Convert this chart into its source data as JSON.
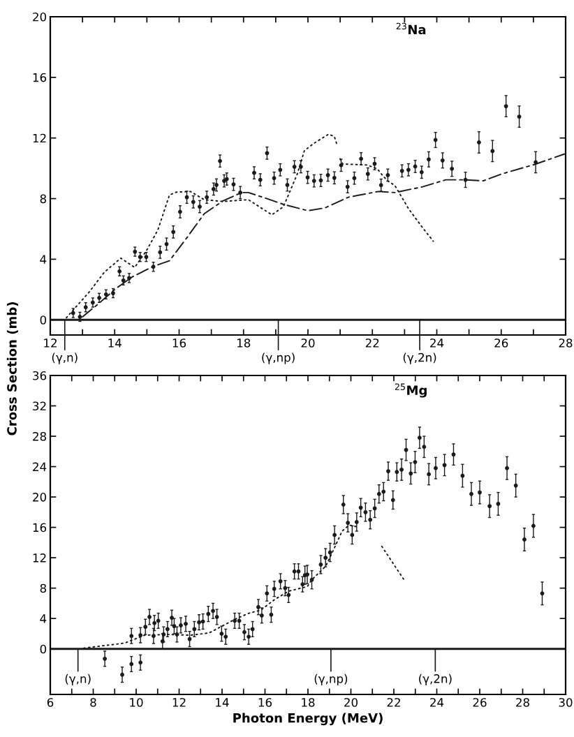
{
  "chart_data": [
    {
      "type": "scatter",
      "title": "$^{23}$Na",
      "ylabel": "Cross Section (mb)",
      "xlim": [
        12,
        28
      ],
      "ylim": [
        -1,
        20
      ],
      "xticks": [
        12,
        {
          "value": 13,
          "label": null
        },
        14,
        {
          "value": 15,
          "label": null
        },
        16,
        {
          "value": 17,
          "label": null
        },
        18,
        {
          "value": 19,
          "label": null
        },
        20,
        {
          "value": 21,
          "label": null
        },
        22,
        {
          "value": 23,
          "label": null
        },
        24,
        {
          "value": 25,
          "label": null
        },
        26,
        {
          "value": 27,
          "label": null
        },
        28
      ],
      "yticks": [
        0,
        4,
        8,
        12,
        16,
        20
      ],
      "series": [
        {
          "color": "#1a1a1a",
          "marker": "circle",
          "x": [
            12.71,
            12.92,
            13.1,
            13.32,
            13.52,
            13.73,
            13.95,
            14.15,
            14.27,
            14.45,
            14.63,
            14.79,
            14.98,
            15.2,
            15.41,
            15.61,
            15.82,
            16.03,
            16.24,
            16.44,
            16.64,
            16.86,
            17.07,
            17.16,
            17.27,
            17.4,
            17.48,
            17.69,
            17.9,
            18.33,
            18.52,
            18.73,
            18.95,
            19.14,
            19.36,
            19.58,
            19.78,
            19.99,
            20.19,
            20.4,
            20.62,
            20.82,
            21.03,
            21.23,
            21.44,
            21.65,
            21.86,
            22.07,
            22.27,
            22.48,
            22.92,
            23.12,
            23.33,
            23.53,
            23.75,
            23.96,
            24.18,
            24.47,
            24.89,
            25.31,
            25.73,
            26.15,
            26.56,
            27.07
          ],
          "values": [
            0.45,
            0.2,
            0.83,
            1.14,
            1.45,
            1.68,
            1.76,
            3.2,
            2.6,
            2.76,
            4.5,
            4.15,
            4.15,
            3.5,
            4.46,
            5.0,
            5.8,
            7.13,
            8.09,
            7.78,
            7.47,
            8.09,
            8.63,
            8.9,
            10.48,
            9.17,
            9.29,
            8.94,
            8.4,
            9.7,
            9.24,
            11.0,
            9.35,
            9.9,
            8.9,
            10.1,
            10.1,
            9.4,
            9.17,
            9.2,
            9.55,
            9.37,
            10.2,
            8.78,
            9.35,
            10.63,
            9.63,
            10.3,
            8.89,
            9.55,
            9.83,
            9.9,
            10.12,
            9.74,
            10.59,
            11.87,
            10.52,
            9.97,
            9.24,
            11.71,
            11.14,
            14.1,
            13.41,
            10.4
          ],
          "errors": [
            0.3,
            0.3,
            0.3,
            0.3,
            0.3,
            0.3,
            0.3,
            0.3,
            0.3,
            0.3,
            0.3,
            0.3,
            0.3,
            0.3,
            0.4,
            0.4,
            0.4,
            0.4,
            0.4,
            0.4,
            0.4,
            0.4,
            0.4,
            0.4,
            0.4,
            0.4,
            0.4,
            0.4,
            0.4,
            0.4,
            0.4,
            0.4,
            0.4,
            0.4,
            0.4,
            0.4,
            0.4,
            0.4,
            0.4,
            0.4,
            0.4,
            0.4,
            0.4,
            0.4,
            0.4,
            0.4,
            0.4,
            0.4,
            0.4,
            0.4,
            0.4,
            0.4,
            0.4,
            0.4,
            0.5,
            0.5,
            0.5,
            0.5,
            0.5,
            0.7,
            0.7,
            0.7,
            0.7,
            0.7
          ]
        },
        {
          "type": "line",
          "color": "#1a1a1a",
          "line_style": "dashed",
          "x": [
            13.0,
            13.46,
            14.04,
            14.55,
            15.2,
            15.7,
            16.2,
            16.78,
            17.36,
            17.94,
            18.15,
            18.73,
            19.24,
            20.0,
            20.53,
            21.25,
            22.19,
            22.7,
            23.56,
            24.28,
            24.86,
            25.44,
            26.02,
            27.03,
            27.96
          ],
          "values": [
            0.2,
            1.0,
            2.07,
            2.84,
            3.53,
            3.9,
            5.3,
            7.0,
            7.85,
            8.4,
            8.4,
            8.0,
            7.62,
            7.2,
            7.39,
            8.09,
            8.47,
            8.4,
            8.78,
            9.24,
            9.24,
            9.17,
            9.63,
            10.25,
            10.94
          ]
        },
        {
          "type": "line",
          "color": "#1a1a1a",
          "line_style": "dotted",
          "x": [
            12.5,
            13.21,
            13.68,
            14.19,
            14.62,
            14.98,
            15.34,
            15.7,
            15.92,
            16.35,
            16.78,
            17.36,
            18.15,
            18.88,
            19.24,
            19.67,
            19.89,
            20.18,
            20.64,
            20.82,
            20.9,
            20.95,
            21.0,
            21.08,
            21.83,
            22.15,
            22.34,
            22.48,
            22.7,
            23.13,
            23.56,
            23.89
          ],
          "values": [
            0.14,
            1.84,
            3.15,
            4.07,
            3.46,
            4.54,
            5.93,
            8.24,
            8.43,
            8.47,
            7.93,
            7.81,
            7.93,
            6.93,
            7.47,
            9.63,
            11.17,
            11.64,
            12.25,
            12.1,
            11.56,
            null,
            10.63,
            10.28,
            10.22,
            9.97,
            9.47,
            9.17,
            8.86,
            7.31,
            6.08,
            5.19
          ]
        }
      ],
      "ref_lines": [
        {
          "axis": "y",
          "value": 0
        }
      ],
      "annotations": [
        {
          "text": "(γ,n)",
          "x": 12.45,
          "y": 0
        },
        {
          "text": "(γ,np)",
          "x": 19.08,
          "y": 0
        },
        {
          "text": "(γ,2n)",
          "x": 23.47,
          "y": 0
        }
      ]
    },
    {
      "type": "scatter",
      "title": "$^{25}$Mg",
      "xlabel": "Photon Energy (MeV)",
      "xlim": [
        6,
        30
      ],
      "ylim": [
        -6,
        36
      ],
      "xticks": [
        6,
        {
          "value": 7,
          "label": null
        },
        8,
        {
          "value": 9,
          "label": null
        },
        10,
        {
          "value": 11,
          "label": null
        },
        12,
        {
          "value": 13,
          "label": null
        },
        14,
        {
          "value": 15,
          "label": null
        },
        16,
        {
          "value": 17,
          "label": null
        },
        18,
        {
          "value": 19,
          "label": null
        },
        20,
        {
          "value": 21,
          "label": null
        },
        22,
        {
          "value": 23,
          "label": null
        },
        24,
        {
          "value": 25,
          "label": null
        },
        26,
        {
          "value": 27,
          "label": null
        },
        28,
        {
          "value": 29,
          "label": null
        },
        30
      ],
      "yticks": [
        0,
        4,
        8,
        12,
        16,
        20,
        24,
        28,
        32,
        36
      ],
      "series": [
        {
          "color": "#1a1a1a",
          "marker": "circle",
          "x": [
            8.54,
            9.35,
            9.78,
            10.2,
            9.78,
            10.2,
            10.43,
            10.62,
            10.81,
            10.85,
            11.03,
            11.23,
            11.28,
            11.46,
            11.66,
            11.77,
            11.9,
            12.08,
            12.31,
            12.49,
            12.71,
            12.93,
            13.11,
            13.36,
            13.58,
            13.76,
            13.98,
            14.17,
            14.59,
            14.8,
            15.04,
            15.24,
            15.42,
            15.69,
            15.85,
            16.09,
            16.29,
            16.43,
            16.72,
            16.94,
            17.1,
            17.37,
            17.56,
            17.75,
            17.86,
            17.97,
            18.18,
            18.6,
            18.82,
            19.03,
            19.24,
            19.65,
            19.86,
            20.06,
            20.27,
            20.46,
            20.68,
            20.9,
            21.11,
            21.31,
            21.52,
            21.74,
            21.96,
            22.14,
            22.36,
            22.57,
            22.79,
            22.99,
            23.2,
            23.41,
            23.63,
            23.95,
            24.36,
            24.78,
            25.2,
            25.61,
            26.0,
            26.46,
            26.86,
            27.27,
            27.68,
            28.08,
            28.5,
            28.91
          ],
          "values": [
            -1.3,
            -3.4,
            -2.0,
            -1.8,
            1.7,
            1.8,
            2.9,
            4.2,
            1.7,
            3.4,
            3.7,
            1.0,
            1.9,
            2.6,
            4.1,
            3.0,
            1.9,
            3.1,
            3.3,
            1.3,
            2.6,
            3.5,
            3.6,
            4.6,
            5.0,
            4.2,
            2.0,
            1.6,
            3.7,
            3.7,
            2.2,
            1.6,
            2.6,
            5.5,
            4.4,
            7.3,
            4.5,
            7.9,
            8.9,
            8.0,
            7.1,
            10.2,
            10.2,
            8.5,
            9.7,
            9.8,
            9.1,
            11.1,
            12.0,
            12.7,
            15.0,
            19.0,
            16.6,
            15.0,
            16.7,
            18.6,
            18.0,
            17.0,
            18.5,
            20.4,
            20.7,
            23.4,
            19.6,
            23.3,
            23.6,
            26.2,
            23.1,
            24.6,
            27.8,
            26.6,
            23.0,
            23.8,
            24.2,
            25.6,
            22.8,
            20.4,
            20.6,
            18.8,
            19.1,
            23.8,
            21.5,
            14.4,
            16.2,
            7.3
          ],
          "errors": [
            1.0,
            1.0,
            1.0,
            1.0,
            1.0,
            1.0,
            1.0,
            1.0,
            1.0,
            1.0,
            1.0,
            1.0,
            1.0,
            1.0,
            1.0,
            1.0,
            1.0,
            1.0,
            1.0,
            1.0,
            1.0,
            1.0,
            1.0,
            1.0,
            1.0,
            1.0,
            1.0,
            1.0,
            1.0,
            1.0,
            1.0,
            1.0,
            1.0,
            1.0,
            1.0,
            1.0,
            1.0,
            1.0,
            1.0,
            1.0,
            1.0,
            1.0,
            1.0,
            1.0,
            1.2,
            1.2,
            1.2,
            1.2,
            1.2,
            1.2,
            1.2,
            1.2,
            1.2,
            1.2,
            1.2,
            1.2,
            1.2,
            1.2,
            1.2,
            1.2,
            1.2,
            1.2,
            1.2,
            1.2,
            1.4,
            1.4,
            1.4,
            1.4,
            1.4,
            1.4,
            1.4,
            1.4,
            1.4,
            1.4,
            1.5,
            1.5,
            1.5,
            1.5,
            1.5,
            1.5,
            1.5,
            1.5,
            1.5,
            1.5
          ]
        },
        {
          "type": "line",
          "color": "#1a1a1a",
          "line_style": "dotted",
          "x": [
            7.56,
            9.3,
            9.5,
            10.4,
            11.46,
            12.55,
            13.4,
            14.07,
            14.6,
            15.26,
            15.8,
            16.45,
            17.1,
            17.97,
            18.18,
            18.83,
            19.2,
            19.59,
            19.92,
            20.25
          ],
          "values": [
            0.1,
            0.7,
            0.8,
            1.8,
            1.9,
            1.8,
            2.1,
            3.1,
            3.9,
            4.7,
            5.1,
            6.5,
            7.6,
            8.2,
            9.1,
            10.9,
            13.1,
            15.5,
            16.3,
            16.1
          ]
        },
        {
          "type": "line",
          "color": "#1a1a1a",
          "line_style": "dotted",
          "x": [
            21.44,
            22.52
          ],
          "values": [
            13.5,
            8.9
          ]
        }
      ],
      "ref_lines": [
        {
          "axis": "y",
          "value": 0
        }
      ],
      "annotations": [
        {
          "text": "(γ,n)",
          "x": 7.29,
          "y": 0
        },
        {
          "text": "(γ,np)",
          "x": 19.07,
          "y": 0
        },
        {
          "text": "(γ,2n)",
          "x": 23.93,
          "y": 0
        }
      ]
    }
  ]
}
